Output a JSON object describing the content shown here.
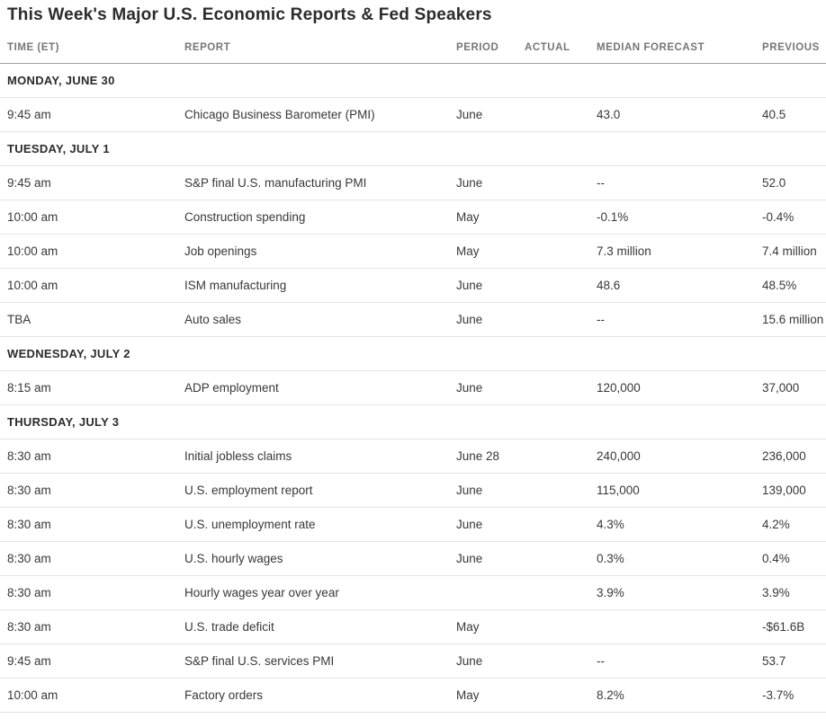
{
  "page": {
    "title": "This Week's Major U.S. Economic Reports & Fed Speakers"
  },
  "colors": {
    "background": "#ffffff",
    "title_text": "#2b2b2b",
    "column_header_text": "#767676",
    "day_header_text": "#2b2b2b",
    "cell_text": "#383838",
    "header_rule": "#9e9e9e",
    "row_rule": "#e4e4e4"
  },
  "table": {
    "columns": [
      "TIME (ET)",
      "REPORT",
      "PERIOD",
      "ACTUAL",
      "MEDIAN FORECAST",
      "PREVIOUS"
    ],
    "rows": [
      {
        "type": "day",
        "label": "MONDAY, JUNE 30"
      },
      {
        "type": "data",
        "time": "9:45 am",
        "report": "Chicago Business Barometer (PMI)",
        "period": "June",
        "actual": "",
        "forecast": "43.0",
        "previous": "40.5"
      },
      {
        "type": "day",
        "label": "TUESDAY, JULY 1"
      },
      {
        "type": "data",
        "time": "9:45 am",
        "report": "S&P final U.S. manufacturing PMI",
        "period": "June",
        "actual": "",
        "forecast": "--",
        "previous": "52.0"
      },
      {
        "type": "data",
        "time": "10:00 am",
        "report": "Construction spending",
        "period": "May",
        "actual": "",
        "forecast": "-0.1%",
        "previous": "-0.4%"
      },
      {
        "type": "data",
        "time": "10:00 am",
        "report": "Job openings",
        "period": "May",
        "actual": "",
        "forecast": "7.3 million",
        "previous": "7.4 million"
      },
      {
        "type": "data",
        "time": "10:00 am",
        "report": "ISM manufacturing",
        "period": "June",
        "actual": "",
        "forecast": "48.6",
        "previous": "48.5%"
      },
      {
        "type": "data",
        "time": "TBA",
        "report": "Auto sales",
        "period": "June",
        "actual": "",
        "forecast": "--",
        "previous": "15.6 million"
      },
      {
        "type": "day",
        "label": "WEDNESDAY, JULY 2"
      },
      {
        "type": "data",
        "time": "8:15 am",
        "report": "ADP employment",
        "period": "June",
        "actual": "",
        "forecast": "120,000",
        "previous": "37,000"
      },
      {
        "type": "day",
        "label": "THURSDAY, JULY 3"
      },
      {
        "type": "data",
        "time": "8:30 am",
        "report": "Initial jobless claims",
        "period": "June 28",
        "actual": "",
        "forecast": "240,000",
        "previous": "236,000"
      },
      {
        "type": "data",
        "time": "8:30 am",
        "report": "U.S. employment report",
        "period": "June",
        "actual": "",
        "forecast": "115,000",
        "previous": "139,000"
      },
      {
        "type": "data",
        "time": "8:30 am",
        "report": "U.S. unemployment rate",
        "period": "June",
        "actual": "",
        "forecast": "4.3%",
        "previous": "4.2%"
      },
      {
        "type": "data",
        "time": "8:30 am",
        "report": "U.S. hourly wages",
        "period": "June",
        "actual": "",
        "forecast": "0.3%",
        "previous": "0.4%"
      },
      {
        "type": "data",
        "time": "8:30 am",
        "report": "Hourly wages year over year",
        "period": "",
        "actual": "",
        "forecast": "3.9%",
        "previous": "3.9%"
      },
      {
        "type": "data",
        "time": "8:30 am",
        "report": "U.S. trade deficit",
        "period": "May",
        "actual": "",
        "forecast": "",
        "previous": "-$61.6B"
      },
      {
        "type": "data",
        "time": "9:45 am",
        "report": "S&P final U.S. services PMI",
        "period": "June",
        "actual": "",
        "forecast": "--",
        "previous": "53.7"
      },
      {
        "type": "data",
        "time": "10:00 am",
        "report": "Factory orders",
        "period": "May",
        "actual": "",
        "forecast": "8.2%",
        "previous": "-3.7%"
      }
    ]
  },
  "chart_data": {
    "type": "table",
    "title": "This Week's Major U.S. Economic Reports & Fed Speakers",
    "columns": [
      "TIME (ET)",
      "REPORT",
      "PERIOD",
      "ACTUAL",
      "MEDIAN FORECAST",
      "PREVIOUS"
    ],
    "sections": [
      {
        "day": "MONDAY, JUNE 30",
        "entries": [
          [
            "9:45 am",
            "Chicago Business Barometer (PMI)",
            "June",
            "",
            "43.0",
            "40.5"
          ]
        ]
      },
      {
        "day": "TUESDAY, JULY 1",
        "entries": [
          [
            "9:45 am",
            "S&P final U.S. manufacturing PMI",
            "June",
            "",
            "--",
            "52.0"
          ],
          [
            "10:00 am",
            "Construction spending",
            "May",
            "",
            "-0.1%",
            "-0.4%"
          ],
          [
            "10:00 am",
            "Job openings",
            "May",
            "",
            "7.3 million",
            "7.4 million"
          ],
          [
            "10:00 am",
            "ISM manufacturing",
            "June",
            "",
            "48.6",
            "48.5%"
          ],
          [
            "TBA",
            "Auto sales",
            "June",
            "",
            "--",
            "15.6 million"
          ]
        ]
      },
      {
        "day": "WEDNESDAY, JULY 2",
        "entries": [
          [
            "8:15 am",
            "ADP employment",
            "June",
            "",
            "120,000",
            "37,000"
          ]
        ]
      },
      {
        "day": "THURSDAY, JULY 3",
        "entries": [
          [
            "8:30 am",
            "Initial jobless claims",
            "June 28",
            "",
            "240,000",
            "236,000"
          ],
          [
            "8:30 am",
            "U.S. employment report",
            "June",
            "",
            "115,000",
            "139,000"
          ],
          [
            "8:30 am",
            "U.S. unemployment rate",
            "June",
            "",
            "4.3%",
            "4.2%"
          ],
          [
            "8:30 am",
            "U.S. hourly wages",
            "June",
            "",
            "0.3%",
            "0.4%"
          ],
          [
            "8:30 am",
            "Hourly wages year over year",
            "",
            "",
            "3.9%",
            "3.9%"
          ],
          [
            "8:30 am",
            "U.S. trade deficit",
            "May",
            "",
            "",
            "-$61.6B"
          ],
          [
            "9:45 am",
            "S&P final U.S. services PMI",
            "June",
            "",
            "--",
            "53.7"
          ],
          [
            "10:00 am",
            "Factory orders",
            "May",
            "",
            "8.2%",
            "-3.7%"
          ]
        ]
      }
    ]
  }
}
